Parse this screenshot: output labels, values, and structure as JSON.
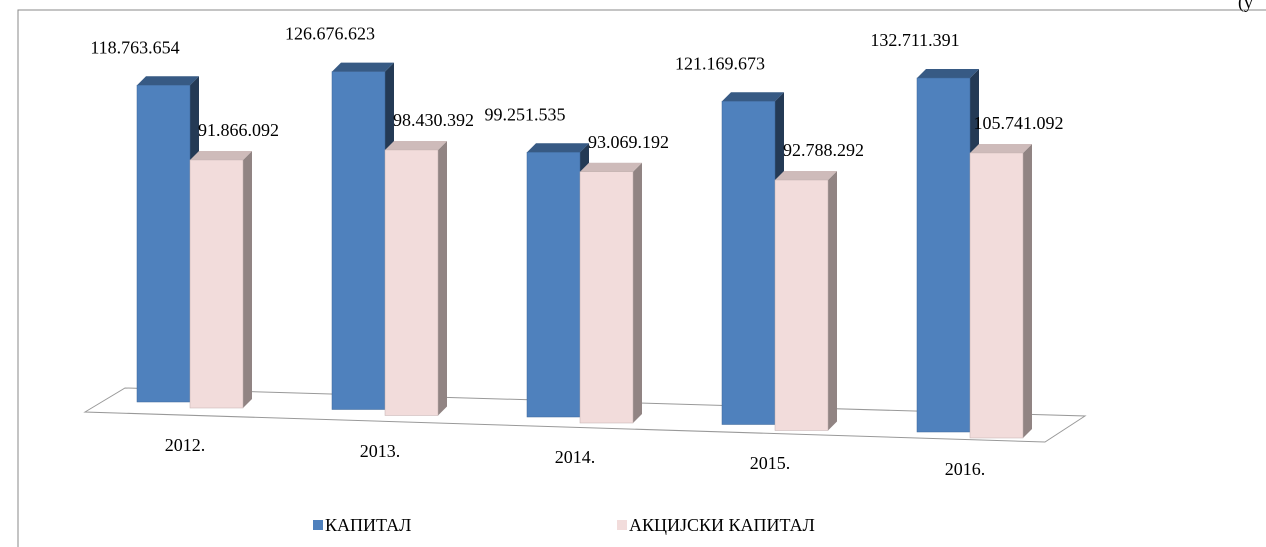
{
  "chart_data": {
    "type": "bar3d",
    "annotation": "(у",
    "categories": [
      "2012.",
      "2013.",
      "2014.",
      "2015.",
      "2016."
    ],
    "series": [
      {
        "name": "КАПИТАЛ",
        "color": "#4f81bd",
        "values": [
          118763654,
          126676623,
          99251535,
          121169673,
          132711391
        ],
        "value_labels": [
          "118.763.654",
          "126.676.623",
          "99.251.535",
          "121.169.673",
          "132.711.391"
        ]
      },
      {
        "name": "АКЦИЈСКИ КАПИТАЛ",
        "color": "#f2dcdb",
        "values": [
          91866092,
          98430392,
          93069192,
          92788292,
          105741092
        ],
        "value_labels": [
          "91.866.092",
          "98.430.392",
          "93.069.192",
          "92.788.292",
          "105.741.092"
        ]
      }
    ]
  }
}
